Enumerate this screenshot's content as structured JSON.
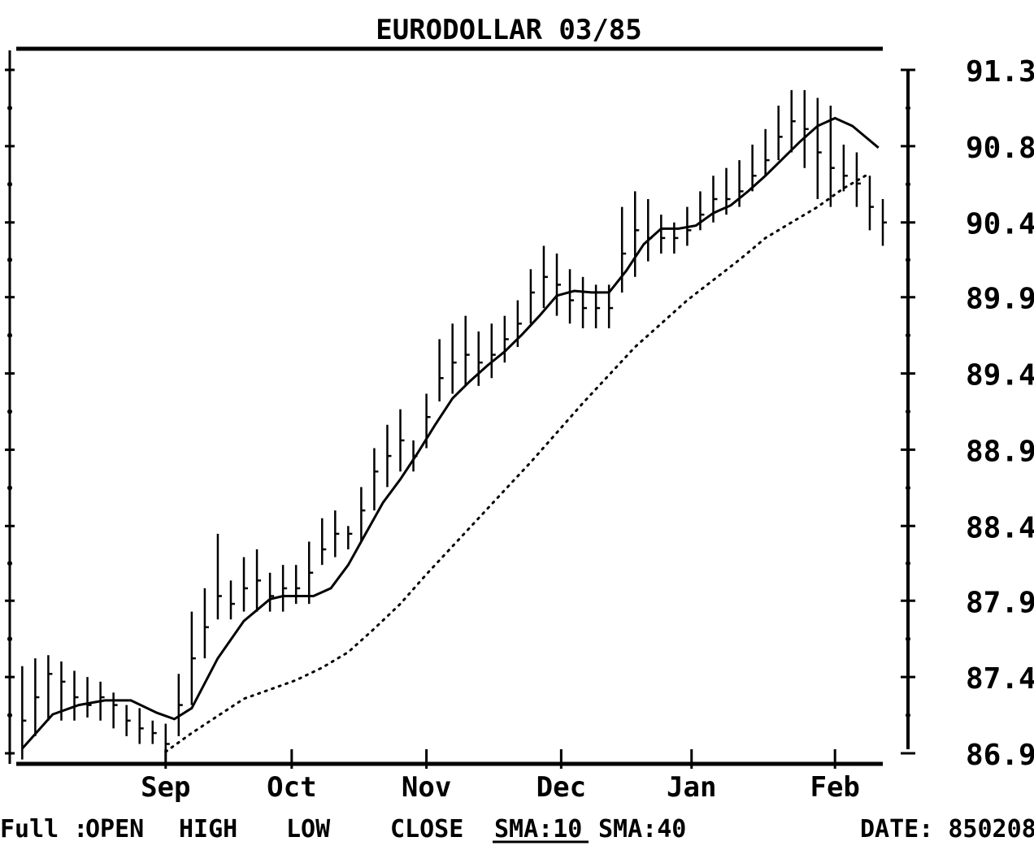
{
  "chart_data": {
    "type": "line",
    "title": "EURODOLLAR 03/85",
    "y_ticks": [
      "86.99",
      "87.48",
      "87.97",
      "88.45",
      "88.94",
      "89.43",
      "89.92",
      "90.40",
      "90.89",
      "91.38"
    ],
    "ylim": [
      86.99,
      91.38
    ],
    "x_ticks": [
      "Sep",
      "Oct",
      "Nov",
      "Dec",
      "Jan",
      "Feb"
    ],
    "x_tick_day": [
      34,
      63,
      94,
      125,
      155,
      188
    ],
    "xlim": [
      0,
      199
    ],
    "grid": false,
    "ohlc": {
      "x": [
        1,
        4,
        7,
        10,
        13,
        16,
        19,
        22,
        25,
        28,
        31,
        34,
        37,
        40,
        43,
        46,
        49,
        52,
        55,
        58,
        61,
        64,
        67,
        70,
        73,
        76,
        79,
        82,
        85,
        88,
        91,
        94,
        97,
        100,
        103,
        106,
        109,
        112,
        115,
        118,
        121,
        124,
        127,
        130,
        133,
        136,
        139,
        142,
        145,
        148,
        151,
        154,
        157,
        160,
        163,
        166,
        169,
        172,
        175,
        178,
        181,
        184,
        187,
        190,
        193,
        196,
        199
      ],
      "high": [
        87.55,
        87.6,
        87.62,
        87.58,
        87.52,
        87.48,
        87.45,
        87.38,
        87.3,
        87.28,
        87.2,
        87.18,
        87.5,
        87.9,
        88.05,
        88.4,
        88.1,
        88.25,
        88.3,
        88.15,
        88.2,
        88.2,
        88.35,
        88.5,
        88.55,
        88.45,
        88.7,
        88.95,
        89.1,
        89.2,
        89.0,
        89.3,
        89.65,
        89.75,
        89.8,
        89.7,
        89.75,
        89.8,
        89.9,
        90.1,
        90.25,
        90.2,
        90.1,
        90.05,
        90.0,
        90.0,
        90.5,
        90.6,
        90.55,
        90.45,
        90.4,
        90.5,
        90.6,
        90.7,
        90.75,
        90.8,
        90.9,
        91.0,
        91.15,
        91.25,
        91.25,
        91.2,
        91.15,
        90.9,
        90.85,
        90.7,
        90.55
      ],
      "low": [
        86.95,
        87.1,
        87.2,
        87.2,
        87.2,
        87.22,
        87.2,
        87.15,
        87.1,
        87.05,
        87.05,
        86.97,
        87.1,
        87.3,
        87.6,
        87.85,
        87.85,
        87.9,
        87.9,
        87.9,
        87.9,
        87.95,
        87.95,
        88.2,
        88.25,
        88.3,
        88.35,
        88.55,
        88.7,
        88.8,
        88.8,
        88.95,
        89.25,
        89.3,
        89.35,
        89.35,
        89.4,
        89.5,
        89.6,
        89.75,
        89.85,
        89.8,
        89.75,
        89.72,
        89.72,
        89.72,
        89.95,
        90.05,
        90.15,
        90.2,
        90.2,
        90.25,
        90.35,
        90.4,
        90.45,
        90.5,
        90.6,
        90.7,
        90.8,
        90.85,
        90.75,
        90.55,
        90.5,
        90.6,
        90.5,
        90.35,
        90.25
      ],
      "close": [
        87.2,
        87.35,
        87.5,
        87.45,
        87.35,
        87.3,
        87.35,
        87.3,
        87.2,
        87.15,
        87.12,
        87.05,
        87.3,
        87.6,
        87.8,
        88.0,
        87.95,
        88.05,
        88.1,
        88.0,
        88.05,
        88.05,
        88.15,
        88.3,
        88.4,
        88.4,
        88.55,
        88.8,
        88.9,
        89.0,
        88.9,
        89.15,
        89.4,
        89.5,
        89.55,
        89.5,
        89.55,
        89.65,
        89.75,
        89.95,
        90.05,
        90.0,
        89.9,
        89.85,
        89.85,
        89.85,
        90.2,
        90.35,
        90.3,
        90.3,
        90.3,
        90.35,
        90.45,
        90.55,
        90.55,
        90.6,
        90.7,
        90.8,
        90.95,
        91.05,
        91.0,
        90.85,
        90.75,
        90.7,
        90.65,
        90.5,
        90.4
      ]
    },
    "series": [
      {
        "name": "SMA:10",
        "style": "solid",
        "x": [
          1,
          8,
          14,
          20,
          26,
          32,
          36,
          40,
          46,
          52,
          58,
          61,
          64,
          68,
          72,
          76,
          80,
          84,
          88,
          92,
          96,
          100,
          104,
          108,
          112,
          116,
          120,
          124,
          128,
          132,
          136,
          140,
          144,
          148,
          152,
          156,
          160,
          164,
          168,
          172,
          176,
          180,
          184,
          188,
          192,
          195,
          198
        ],
        "y": [
          87.02,
          87.24,
          87.3,
          87.33,
          87.33,
          87.25,
          87.21,
          87.28,
          87.6,
          87.84,
          87.98,
          88.0,
          88.0,
          88.0,
          88.05,
          88.2,
          88.4,
          88.6,
          88.75,
          88.92,
          89.1,
          89.27,
          89.38,
          89.48,
          89.57,
          89.68,
          89.8,
          89.93,
          89.96,
          89.95,
          89.95,
          90.09,
          90.26,
          90.36,
          90.36,
          90.38,
          90.46,
          90.51,
          90.6,
          90.7,
          90.81,
          90.92,
          91.02,
          91.07,
          91.02,
          90.95,
          90.88
        ]
      },
      {
        "name": "SMA:40",
        "style": "dotted",
        "x": [
          34,
          40,
          46,
          52,
          58,
          64,
          70,
          76,
          82,
          88,
          94,
          100,
          106,
          112,
          118,
          124,
          130,
          136,
          142,
          148,
          154,
          160,
          166,
          172,
          178,
          184,
          190,
          195
        ],
        "y": [
          87.0,
          87.12,
          87.23,
          87.34,
          87.4,
          87.46,
          87.54,
          87.64,
          87.79,
          87.95,
          88.14,
          88.32,
          88.5,
          88.68,
          88.86,
          89.05,
          89.24,
          89.42,
          89.6,
          89.75,
          89.9,
          90.03,
          90.16,
          90.3,
          90.4,
          90.5,
          90.62,
          90.7
        ]
      }
    ]
  },
  "footer": {
    "mode": "Full :",
    "open": "OPEN",
    "high": "HIGH",
    "low": "LOW",
    "close": "CLOSE",
    "sma10": "SMA:10",
    "sma40": "SMA:40",
    "date": "DATE: 850208"
  }
}
